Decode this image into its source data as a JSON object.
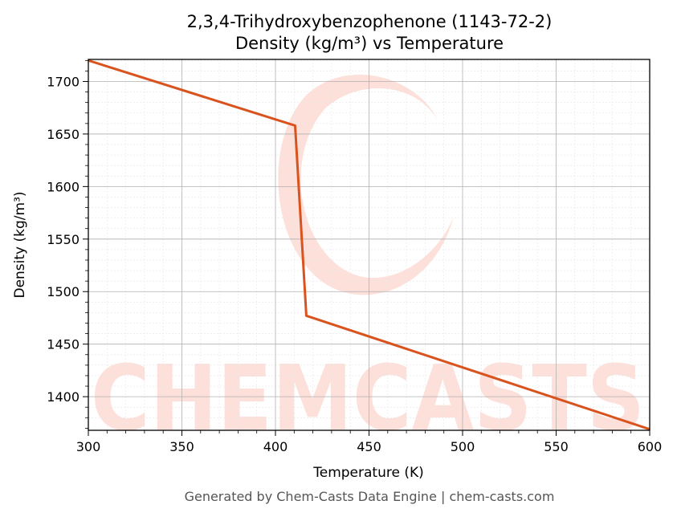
{
  "chart_data": {
    "type": "line",
    "title": "2,3,4-Trihydroxybenzophenone (1143-72-2)",
    "subtitle": "Density (kg/m³) vs Temperature",
    "xlabel": "Temperature (K)",
    "ylabel": "Density (kg/m³)",
    "xlim": [
      300,
      600
    ],
    "ylim": [
      1368,
      1721
    ],
    "xticks": [
      300,
      350,
      400,
      450,
      500,
      550,
      600
    ],
    "yticks": [
      1400,
      1450,
      1500,
      1550,
      1600,
      1650,
      1700
    ],
    "grid": true,
    "legend": "none",
    "series": [
      {
        "color": "#d9531e",
        "x": [
          300,
          410.5,
          416.5,
          600
        ],
        "y": [
          1720,
          1658,
          1477,
          1369
        ]
      }
    ]
  },
  "footer": "Generated by Chem-Casts Data Engine | chem-casts.com",
  "watermark": "CHEMCASTS"
}
